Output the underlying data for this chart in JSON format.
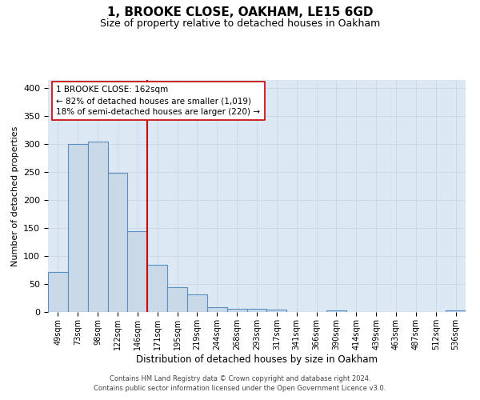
{
  "title": "1, BROOKE CLOSE, OAKHAM, LE15 6GD",
  "subtitle": "Size of property relative to detached houses in Oakham",
  "xlabel": "Distribution of detached houses by size in Oakham",
  "ylabel": "Number of detached properties",
  "categories": [
    "49sqm",
    "73sqm",
    "98sqm",
    "122sqm",
    "146sqm",
    "171sqm",
    "195sqm",
    "219sqm",
    "244sqm",
    "268sqm",
    "293sqm",
    "317sqm",
    "341sqm",
    "366sqm",
    "390sqm",
    "414sqm",
    "439sqm",
    "463sqm",
    "487sqm",
    "512sqm",
    "536sqm"
  ],
  "values": [
    72,
    300,
    305,
    249,
    145,
    84,
    45,
    32,
    8,
    6,
    6,
    4,
    0,
    0,
    3,
    0,
    0,
    0,
    0,
    0,
    3
  ],
  "bar_color": "#c9d9e8",
  "bar_edge_color": "#5a8fc0",
  "property_line_color": "#cc0000",
  "annotation_text": "1 BROOKE CLOSE: 162sqm\n← 82% of detached houses are smaller (1,019)\n18% of semi-detached houses are larger (220) →",
  "annotation_box_color": "#ffffff",
  "annotation_box_edge_color": "#cc0000",
  "ylim": [
    0,
    415
  ],
  "yticks": [
    0,
    50,
    100,
    150,
    200,
    250,
    300,
    350,
    400
  ],
  "footnote": "Contains HM Land Registry data © Crown copyright and database right 2024.\nContains public sector information licensed under the Open Government Licence v3.0.",
  "grid_color": "#d0d8e8",
  "bg_color": "#dce8f4"
}
